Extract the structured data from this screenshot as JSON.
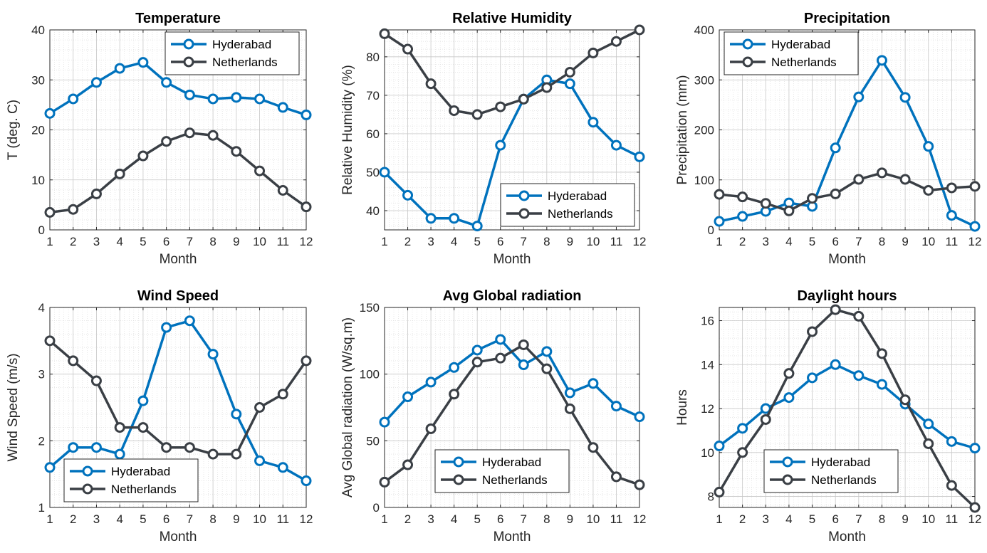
{
  "series_colors": {
    "Hyderabad": "#0072BD",
    "Netherlands": "#3A3F45"
  },
  "chart_data": [
    {
      "type": "line",
      "title": "Temperature",
      "xlabel": "Month",
      "ylabel": "T (deg. C)",
      "x": [
        1,
        2,
        3,
        4,
        5,
        6,
        7,
        8,
        9,
        10,
        11,
        12
      ],
      "xlim": [
        1,
        12
      ],
      "ylim": [
        0,
        40
      ],
      "yticks": [
        0,
        10,
        20,
        30,
        40
      ],
      "grid": true,
      "legend_position": "top-right",
      "series": [
        {
          "name": "Hyderabad",
          "values": [
            23.3,
            26.2,
            29.5,
            32.3,
            33.5,
            29.5,
            27.0,
            26.2,
            26.5,
            26.2,
            24.5,
            23.0
          ]
        },
        {
          "name": "Netherlands",
          "values": [
            3.5,
            4.1,
            7.2,
            11.2,
            14.8,
            17.7,
            19.4,
            18.9,
            15.7,
            11.8,
            7.9,
            4.6
          ]
        }
      ]
    },
    {
      "type": "line",
      "title": "Relative Humidity",
      "xlabel": "Month",
      "ylabel": "Relative Humidity (%)",
      "x": [
        1,
        2,
        3,
        4,
        5,
        6,
        7,
        8,
        9,
        10,
        11,
        12
      ],
      "xlim": [
        1,
        12
      ],
      "ylim": [
        35,
        87
      ],
      "yticks": [
        40,
        50,
        60,
        70,
        80
      ],
      "grid": true,
      "legend_position": "bottom-right",
      "series": [
        {
          "name": "Hyderabad",
          "values": [
            50,
            44,
            38,
            38,
            36,
            57,
            69,
            74,
            73,
            63,
            57,
            54
          ]
        },
        {
          "name": "Netherlands",
          "values": [
            86,
            82,
            73,
            66,
            65,
            67,
            69,
            72,
            76,
            81,
            84,
            87
          ]
        }
      ]
    },
    {
      "type": "line",
      "title": "Precipitation",
      "xlabel": "Month",
      "ylabel": "Precipitation (mm)",
      "x": [
        1,
        2,
        3,
        4,
        5,
        6,
        7,
        8,
        9,
        10,
        11,
        12
      ],
      "xlim": [
        1,
        12
      ],
      "ylim": [
        0,
        400
      ],
      "yticks": [
        0,
        100,
        200,
        300,
        400
      ],
      "grid": true,
      "legend_position": "top-left",
      "series": [
        {
          "name": "Hyderabad",
          "values": [
            17,
            27,
            37,
            54,
            47,
            164,
            266,
            339,
            265,
            167,
            29,
            7
          ]
        },
        {
          "name": "Netherlands",
          "values": [
            71,
            66,
            53,
            38,
            63,
            72,
            101,
            114,
            101,
            79,
            84,
            87
          ]
        }
      ]
    },
    {
      "type": "line",
      "title": "Wind Speed",
      "xlabel": "Month",
      "ylabel": "Wind Speed (m/s)",
      "x": [
        1,
        2,
        3,
        4,
        5,
        6,
        7,
        8,
        9,
        10,
        11,
        12
      ],
      "xlim": [
        1,
        12
      ],
      "ylim": [
        1,
        4
      ],
      "yticks": [
        1,
        2,
        3,
        4
      ],
      "grid": true,
      "legend_position": "bottom-left",
      "series": [
        {
          "name": "Hyderabad",
          "values": [
            1.6,
            1.9,
            1.9,
            1.8,
            2.6,
            3.7,
            3.8,
            3.3,
            2.4,
            1.7,
            1.6,
            1.4
          ]
        },
        {
          "name": "Netherlands",
          "values": [
            3.5,
            3.2,
            2.9,
            2.2,
            2.2,
            1.9,
            1.9,
            1.8,
            1.8,
            2.5,
            2.7,
            3.2
          ]
        }
      ]
    },
    {
      "type": "line",
      "title": "Avg Global radiation",
      "xlabel": "Month",
      "ylabel": "Avg Global radiation (W/sq.m)",
      "x": [
        1,
        2,
        3,
        4,
        5,
        6,
        7,
        8,
        9,
        10,
        11,
        12
      ],
      "xlim": [
        1,
        12
      ],
      "ylim": [
        0,
        150
      ],
      "yticks": [
        0,
        50,
        100,
        150
      ],
      "grid": true,
      "legend_position": "bottom-center",
      "series": [
        {
          "name": "Hyderabad",
          "values": [
            64,
            83,
            94,
            105,
            118,
            126,
            107,
            117,
            86,
            93,
            76,
            68
          ]
        },
        {
          "name": "Netherlands",
          "values": [
            19,
            32,
            59,
            85,
            109,
            112,
            122,
            104,
            74,
            45,
            23,
            17
          ]
        }
      ]
    },
    {
      "type": "line",
      "title": "Daylight hours",
      "xlabel": "Month",
      "ylabel": "Hours",
      "x": [
        1,
        2,
        3,
        4,
        5,
        6,
        7,
        8,
        9,
        10,
        11,
        12
      ],
      "xlim": [
        1,
        12
      ],
      "ylim": [
        7.5,
        16.6
      ],
      "yticks": [
        8,
        10,
        12,
        14,
        16
      ],
      "grid": true,
      "legend_position": "bottom-center",
      "series": [
        {
          "name": "Hyderabad",
          "values": [
            10.3,
            11.1,
            12.0,
            12.5,
            13.4,
            14.0,
            13.5,
            13.1,
            12.2,
            11.3,
            10.5,
            10.2
          ]
        },
        {
          "name": "Netherlands",
          "values": [
            8.2,
            10.0,
            11.5,
            13.6,
            15.5,
            16.5,
            16.2,
            14.5,
            12.4,
            10.4,
            8.5,
            7.5
          ]
        }
      ]
    }
  ]
}
